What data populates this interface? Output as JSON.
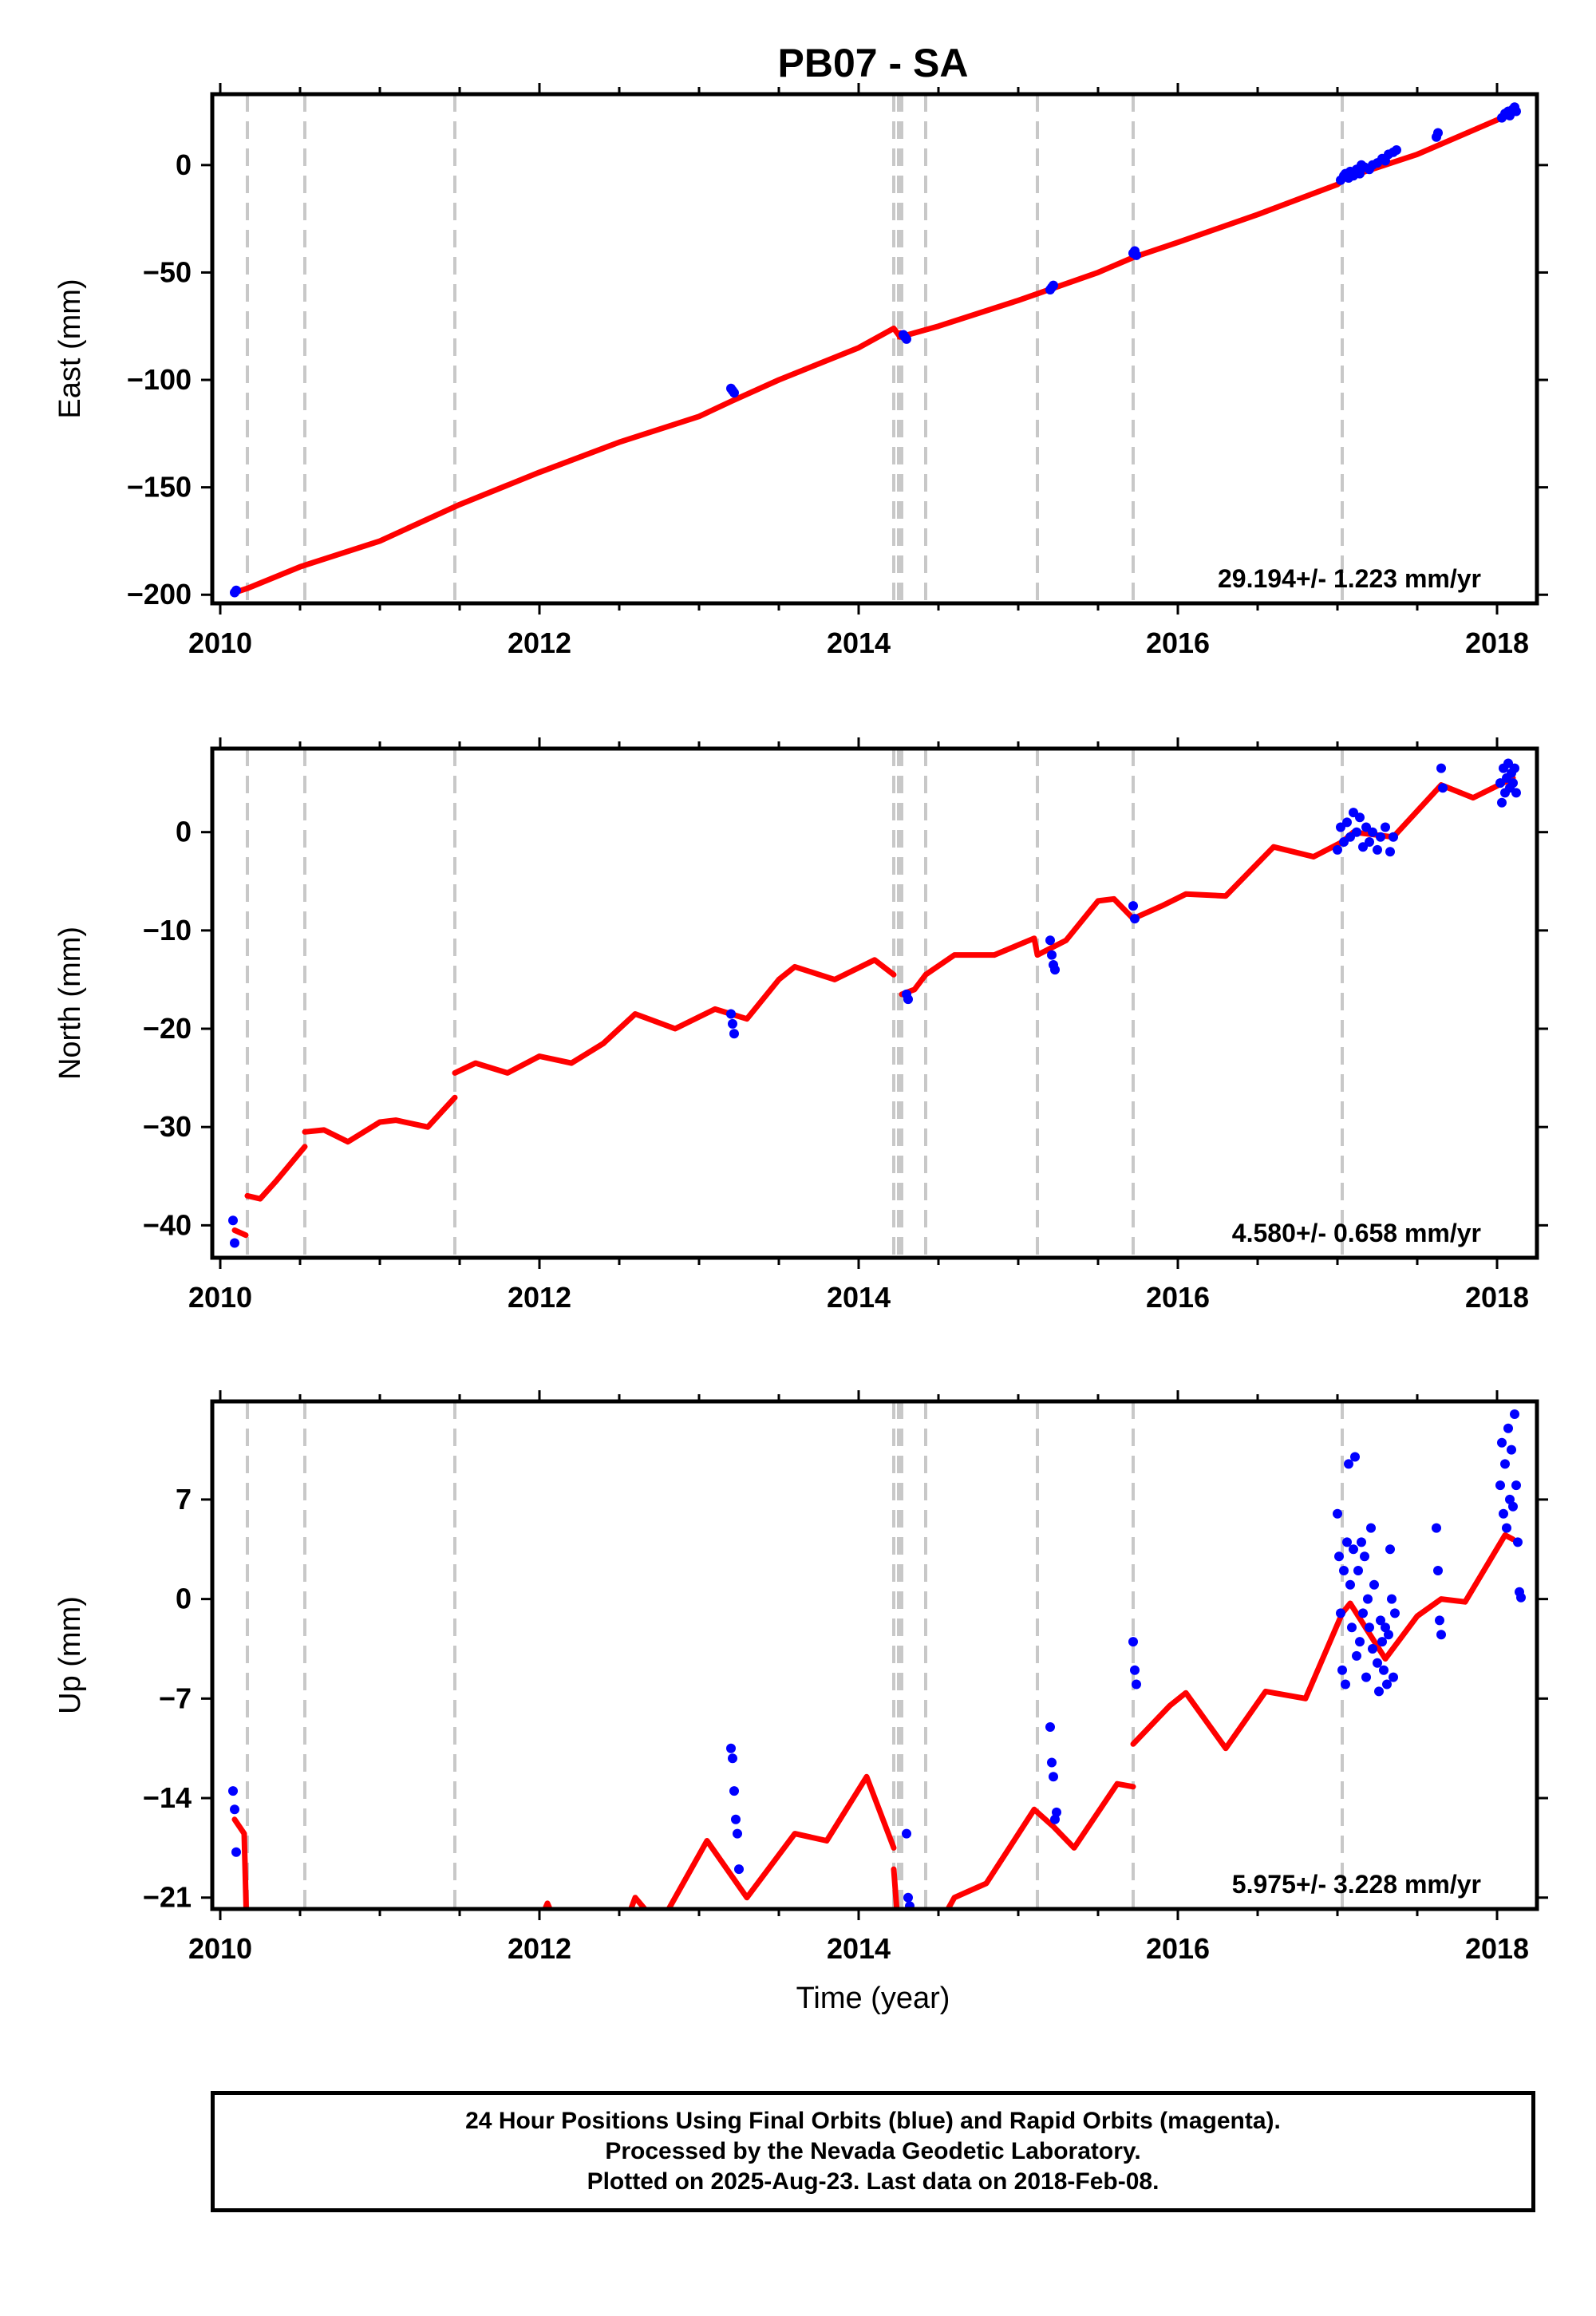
{
  "title": "PB07 - SA",
  "xlabel": "Time (year)",
  "colors": {
    "model": "#ff0000",
    "data": "#0000ff",
    "event_lines": "#c8c8c8",
    "frame": "#000000"
  },
  "footer": {
    "line1": "24 Hour Positions Using Final Orbits (blue) and Rapid Orbits (magenta).",
    "line2": "Processed by the Nevada Geodetic Laboratory.",
    "line3": "Plotted on 2025-Aug-23. Last data on 2018-Feb-08."
  },
  "chart_data": [
    {
      "type": "scatter",
      "ylabel": "East (mm)",
      "rate_text": "29.194+/- 1.223 mm/yr",
      "xlim": [
        2009.95,
        2018.25
      ],
      "ylim": [
        -204,
        33
      ],
      "xticks": [
        2010,
        2012,
        2014,
        2016,
        2018
      ],
      "yticks": [
        0,
        -50,
        -100,
        -150,
        -200
      ],
      "event_lines_x": [
        2010.17,
        2010.53,
        2011.47,
        2014.22,
        2014.25,
        2014.27,
        2014.42,
        2015.12,
        2015.72,
        2017.03
      ],
      "model_knots": [
        [
          2010.09,
          -199
        ],
        [
          2010.17,
          -197
        ],
        [
          2010.5,
          -187
        ],
        [
          2011.0,
          -175
        ],
        [
          2011.5,
          -158
        ],
        [
          2012.0,
          -143
        ],
        [
          2012.5,
          -129
        ],
        [
          2013.0,
          -117
        ],
        [
          2013.2,
          -110
        ],
        [
          2013.5,
          -100
        ],
        [
          2014.0,
          -85
        ],
        [
          2014.22,
          -76
        ],
        [
          2014.26,
          -80
        ],
        [
          2014.5,
          -75
        ],
        [
          2015.0,
          -63
        ],
        [
          2015.5,
          -50
        ],
        [
          2015.72,
          -43
        ],
        [
          2016.0,
          -36
        ],
        [
          2016.5,
          -23
        ],
        [
          2017.0,
          -9
        ],
        [
          2017.05,
          -6
        ],
        [
          2017.5,
          5
        ],
        [
          2018.0,
          21
        ],
        [
          2018.1,
          24
        ]
      ],
      "model_breaks": [
        [
          2014.25,
          -77
        ],
        [
          2014.26,
          -81
        ]
      ],
      "points": [
        [
          2010.09,
          -199
        ],
        [
          2010.1,
          -198
        ],
        [
          2013.2,
          -104
        ],
        [
          2013.21,
          -105
        ],
        [
          2013.22,
          -106
        ],
        [
          2014.28,
          -79
        ],
        [
          2014.29,
          -80
        ],
        [
          2014.3,
          -81
        ],
        [
          2015.2,
          -58
        ],
        [
          2015.21,
          -57
        ],
        [
          2015.22,
          -56
        ],
        [
          2015.72,
          -41
        ],
        [
          2015.73,
          -40
        ],
        [
          2015.74,
          -42
        ],
        [
          2017.02,
          -7
        ],
        [
          2017.04,
          -5
        ],
        [
          2017.05,
          -4
        ],
        [
          2017.07,
          -6
        ],
        [
          2017.08,
          -3
        ],
        [
          2017.1,
          -5
        ],
        [
          2017.12,
          -2
        ],
        [
          2017.14,
          -4
        ],
        [
          2017.15,
          0
        ],
        [
          2017.17,
          -1
        ],
        [
          2017.2,
          -2
        ],
        [
          2017.22,
          0
        ],
        [
          2017.25,
          1
        ],
        [
          2017.28,
          3
        ],
        [
          2017.3,
          2
        ],
        [
          2017.32,
          5
        ],
        [
          2017.35,
          6
        ],
        [
          2017.37,
          7
        ],
        [
          2017.62,
          13
        ],
        [
          2017.63,
          15
        ],
        [
          2018.03,
          22
        ],
        [
          2018.05,
          24
        ],
        [
          2018.07,
          25
        ],
        [
          2018.08,
          23
        ],
        [
          2018.1,
          26
        ],
        [
          2018.11,
          27
        ],
        [
          2018.12,
          25
        ]
      ]
    },
    {
      "type": "scatter",
      "ylabel": "North (mm)",
      "rate_text": "4.580+/- 0.658 mm/yr",
      "xlim": [
        2009.95,
        2018.25
      ],
      "ylim": [
        -43.3,
        8.5
      ],
      "xticks": [
        2010,
        2012,
        2014,
        2016,
        2018
      ],
      "yticks": [
        0,
        -10,
        -20,
        -30,
        -40
      ],
      "event_lines_x": [
        2010.17,
        2010.53,
        2011.47,
        2014.22,
        2014.25,
        2014.27,
        2014.42,
        2015.12,
        2015.72,
        2017.03
      ],
      "model_segments": [
        [
          [
            2010.09,
            -40.5
          ],
          [
            2010.16,
            -41
          ]
        ],
        [
          [
            2010.17,
            -37
          ],
          [
            2010.25,
            -37.3
          ],
          [
            2010.35,
            -35.5
          ],
          [
            2010.53,
            -32
          ]
        ],
        [
          [
            2010.53,
            -30.5
          ],
          [
            2010.65,
            -30.3
          ],
          [
            2010.8,
            -31.5
          ],
          [
            2011.0,
            -29.5
          ],
          [
            2011.1,
            -29.3
          ],
          [
            2011.3,
            -30
          ],
          [
            2011.47,
            -27
          ]
        ],
        [
          [
            2011.47,
            -24.5
          ],
          [
            2011.6,
            -23.5
          ],
          [
            2011.8,
            -24.5
          ],
          [
            2012.0,
            -22.8
          ],
          [
            2012.2,
            -23.5
          ],
          [
            2012.4,
            -21.5
          ],
          [
            2012.6,
            -18.5
          ],
          [
            2012.85,
            -20
          ],
          [
            2013.1,
            -18
          ],
          [
            2013.3,
            -19
          ],
          [
            2013.5,
            -15
          ],
          [
            2013.6,
            -13.7
          ],
          [
            2013.85,
            -15
          ],
          [
            2014.1,
            -13
          ],
          [
            2014.22,
            -14.5
          ]
        ],
        [
          [
            2014.27,
            -16.5
          ],
          [
            2014.35,
            -16
          ],
          [
            2014.42,
            -14.5
          ],
          [
            2014.6,
            -12.5
          ],
          [
            2014.85,
            -12.5
          ],
          [
            2015.1,
            -10.8
          ],
          [
            2015.12,
            -12.5
          ],
          [
            2015.3,
            -11
          ],
          [
            2015.5,
            -7
          ],
          [
            2015.6,
            -6.8
          ],
          [
            2015.72,
            -8.8
          ],
          [
            2015.9,
            -7.5
          ],
          [
            2016.05,
            -6.3
          ],
          [
            2016.3,
            -6.5
          ],
          [
            2016.6,
            -1.5
          ],
          [
            2016.85,
            -2.5
          ],
          [
            2017.03,
            -1
          ],
          [
            2017.1,
            0
          ],
          [
            2017.35,
            -0.5
          ],
          [
            2017.65,
            4.8
          ],
          [
            2017.85,
            3.5
          ],
          [
            2018.1,
            5.5
          ]
        ]
      ],
      "points": [
        [
          2010.08,
          -39.5
        ],
        [
          2010.09,
          -41.8
        ],
        [
          2013.2,
          -18.5
        ],
        [
          2013.21,
          -19.5
        ],
        [
          2013.22,
          -20.5
        ],
        [
          2014.3,
          -16.5
        ],
        [
          2014.31,
          -17
        ],
        [
          2015.2,
          -11
        ],
        [
          2015.21,
          -12.5
        ],
        [
          2015.22,
          -13.5
        ],
        [
          2015.23,
          -14
        ],
        [
          2015.72,
          -7.5
        ],
        [
          2015.73,
          -8.8
        ],
        [
          2017.0,
          -1.8
        ],
        [
          2017.02,
          0.5
        ],
        [
          2017.04,
          -1
        ],
        [
          2017.06,
          1
        ],
        [
          2017.08,
          -0.5
        ],
        [
          2017.1,
          2
        ],
        [
          2017.12,
          0
        ],
        [
          2017.14,
          1.5
        ],
        [
          2017.16,
          -1.5
        ],
        [
          2017.18,
          0.5
        ],
        [
          2017.2,
          -1
        ],
        [
          2017.22,
          0
        ],
        [
          2017.25,
          -1.8
        ],
        [
          2017.27,
          -0.5
        ],
        [
          2017.3,
          0.5
        ],
        [
          2017.33,
          -2
        ],
        [
          2017.35,
          -0.5
        ],
        [
          2017.65,
          6.5
        ],
        [
          2017.66,
          4.5
        ],
        [
          2018.02,
          5
        ],
        [
          2018.03,
          3
        ],
        [
          2018.04,
          6.5
        ],
        [
          2018.05,
          4
        ],
        [
          2018.06,
          5.5
        ],
        [
          2018.07,
          7
        ],
        [
          2018.08,
          4.5
        ],
        [
          2018.09,
          6
        ],
        [
          2018.1,
          5
        ],
        [
          2018.11,
          6.5
        ],
        [
          2018.12,
          4
        ]
      ]
    },
    {
      "type": "scatter",
      "ylabel": "Up (mm)",
      "rate_text": "5.975+/- 3.228 mm/yr",
      "xlim": [
        2009.95,
        2018.25
      ],
      "ylim": [
        -21.8,
        13.9
      ],
      "xticks": [
        2010,
        2012,
        2014,
        2016,
        2018
      ],
      "yticks": [
        7,
        0,
        -7,
        -14,
        -21
      ],
      "event_lines_x": [
        2010.17,
        2010.53,
        2011.47,
        2014.22,
        2014.25,
        2014.27,
        2014.42,
        2015.12,
        2015.72,
        2017.03
      ],
      "model_segments": [
        [
          [
            2010.09,
            -15.5
          ],
          [
            2010.15,
            -16.5
          ],
          [
            2010.17,
            -25
          ]
        ],
        [
          [
            2011.95,
            -24
          ],
          [
            2012.05,
            -21.4
          ],
          [
            2012.15,
            -24
          ]
        ],
        [
          [
            2012.5,
            -24
          ],
          [
            2012.6,
            -21
          ],
          [
            2012.75,
            -23
          ],
          [
            2013.05,
            -17
          ],
          [
            2013.3,
            -21
          ],
          [
            2013.6,
            -16.5
          ],
          [
            2013.8,
            -17
          ],
          [
            2014.05,
            -12.5
          ],
          [
            2014.22,
            -17.5
          ]
        ],
        [
          [
            2014.22,
            -19
          ],
          [
            2014.26,
            -25
          ]
        ],
        [
          [
            2014.5,
            -23
          ],
          [
            2014.6,
            -21
          ],
          [
            2014.8,
            -20
          ],
          [
            2015.1,
            -14.8
          ],
          [
            2015.22,
            -16
          ],
          [
            2015.35,
            -17.5
          ],
          [
            2015.62,
            -13
          ],
          [
            2015.72,
            -13.2
          ]
        ],
        [
          [
            2015.72,
            -10.2
          ],
          [
            2015.95,
            -7.5
          ],
          [
            2016.05,
            -6.6
          ],
          [
            2016.3,
            -10.5
          ],
          [
            2016.55,
            -6.5
          ],
          [
            2016.8,
            -7
          ],
          [
            2017.03,
            -1
          ],
          [
            2017.08,
            -0.3
          ],
          [
            2017.3,
            -4.2
          ],
          [
            2017.5,
            -1.2
          ],
          [
            2017.65,
            0
          ],
          [
            2017.8,
            -0.2
          ],
          [
            2018.05,
            4.5
          ],
          [
            2018.1,
            4.2
          ]
        ]
      ],
      "points": [
        [
          2010.08,
          -13.5
        ],
        [
          2010.09,
          -14.8
        ],
        [
          2010.1,
          -17.8
        ],
        [
          2013.2,
          -10.5
        ],
        [
          2013.21,
          -11.2
        ],
        [
          2013.22,
          -13.5
        ],
        [
          2013.23,
          -15.5
        ],
        [
          2013.24,
          -16.5
        ],
        [
          2013.25,
          -19
        ],
        [
          2014.3,
          -16.5
        ],
        [
          2014.31,
          -21
        ],
        [
          2014.32,
          -21.6
        ],
        [
          2015.2,
          -9
        ],
        [
          2015.21,
          -11.5
        ],
        [
          2015.22,
          -12.5
        ],
        [
          2015.23,
          -15.5
        ],
        [
          2015.24,
          -15
        ],
        [
          2015.72,
          -3
        ],
        [
          2015.73,
          -5
        ],
        [
          2015.74,
          -6
        ],
        [
          2017.0,
          6
        ],
        [
          2017.01,
          3
        ],
        [
          2017.02,
          -1
        ],
        [
          2017.03,
          -5
        ],
        [
          2017.04,
          2
        ],
        [
          2017.05,
          -6
        ],
        [
          2017.06,
          4
        ],
        [
          2017.07,
          9.5
        ],
        [
          2017.08,
          1
        ],
        [
          2017.09,
          -2
        ],
        [
          2017.1,
          3.5
        ],
        [
          2017.11,
          10
        ],
        [
          2017.12,
          -4
        ],
        [
          2017.13,
          2
        ],
        [
          2017.14,
          -3
        ],
        [
          2017.15,
          4
        ],
        [
          2017.16,
          -1
        ],
        [
          2017.17,
          3
        ],
        [
          2017.18,
          -5.5
        ],
        [
          2017.19,
          0
        ],
        [
          2017.2,
          -2
        ],
        [
          2017.21,
          5
        ],
        [
          2017.22,
          -3.5
        ],
        [
          2017.23,
          1
        ],
        [
          2017.25,
          -4.5
        ],
        [
          2017.26,
          -6.5
        ],
        [
          2017.27,
          -1.5
        ],
        [
          2017.28,
          -3
        ],
        [
          2017.29,
          -5
        ],
        [
          2017.3,
          -2
        ],
        [
          2017.31,
          -6
        ],
        [
          2017.32,
          -2.5
        ],
        [
          2017.33,
          3.5
        ],
        [
          2017.34,
          0
        ],
        [
          2017.35,
          -5.5
        ],
        [
          2017.36,
          -1
        ],
        [
          2017.62,
          5
        ],
        [
          2017.63,
          2
        ],
        [
          2017.64,
          -1.5
        ],
        [
          2017.65,
          -2.5
        ],
        [
          2018.02,
          8
        ],
        [
          2018.03,
          11
        ],
        [
          2018.04,
          6
        ],
        [
          2018.05,
          9.5
        ],
        [
          2018.06,
          5
        ],
        [
          2018.07,
          12
        ],
        [
          2018.08,
          7
        ],
        [
          2018.09,
          10.5
        ],
        [
          2018.1,
          6.5
        ],
        [
          2018.11,
          13
        ],
        [
          2018.12,
          8
        ],
        [
          2018.13,
          4
        ],
        [
          2018.14,
          0.5
        ],
        [
          2018.15,
          0.1
        ]
      ]
    }
  ]
}
